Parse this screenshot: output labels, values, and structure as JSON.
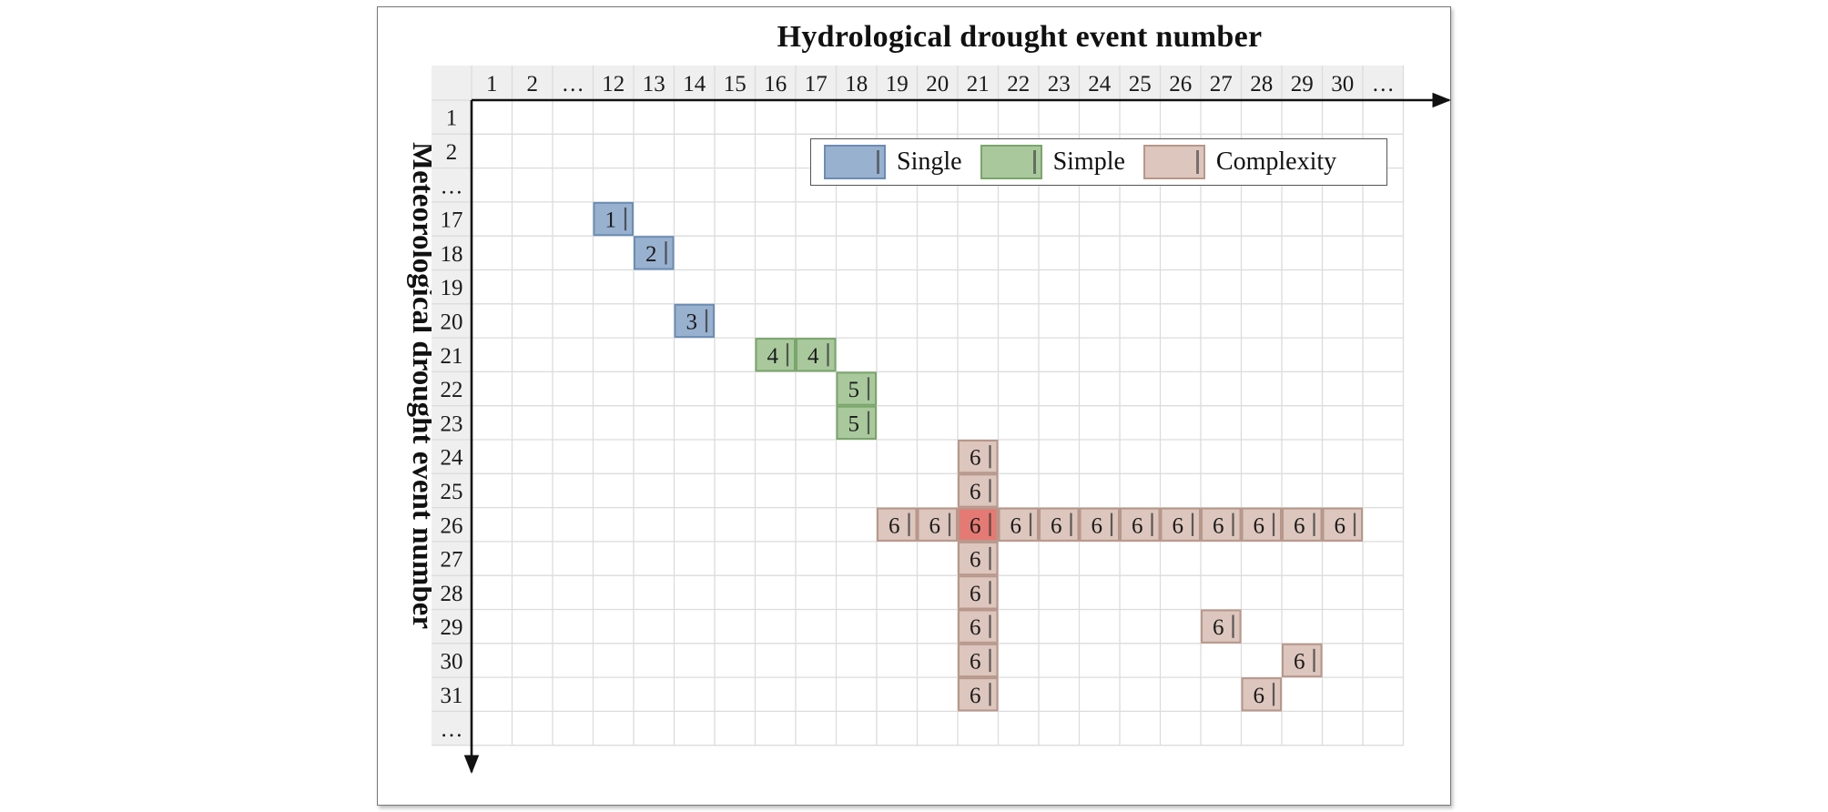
{
  "titles": {
    "x_axis": "Hydrological drought event number",
    "y_axis": "Meteorological drought event number"
  },
  "columns": [
    "1",
    "2",
    "…",
    "12",
    "13",
    "14",
    "15",
    "16",
    "17",
    "18",
    "19",
    "20",
    "21",
    "22",
    "23",
    "24",
    "25",
    "26",
    "27",
    "28",
    "29",
    "30",
    "…"
  ],
  "rows": [
    "1",
    "2",
    "…",
    "17",
    "18",
    "19",
    "20",
    "21",
    "22",
    "23",
    "24",
    "25",
    "26",
    "27",
    "28",
    "29",
    "30",
    "31",
    "…"
  ],
  "legend": [
    {
      "key": "single",
      "label": "Single",
      "fill": "#98b1cf",
      "border": "#6c8db4"
    },
    {
      "key": "simple",
      "label": "Simple",
      "fill": "#a9c99d",
      "border": "#7aa56b"
    },
    {
      "key": "complexity",
      "label": "Complexity",
      "fill": "#dcc6bd",
      "border": "#b8978b"
    }
  ],
  "highlight_color": "#e47a73",
  "cells": [
    {
      "row": "17",
      "col": "12",
      "label": "1",
      "type": "single"
    },
    {
      "row": "18",
      "col": "13",
      "label": "2",
      "type": "single"
    },
    {
      "row": "20",
      "col": "14",
      "label": "3",
      "type": "single"
    },
    {
      "row": "21",
      "col": "16",
      "label": "4",
      "type": "simple"
    },
    {
      "row": "21",
      "col": "17",
      "label": "4",
      "type": "simple"
    },
    {
      "row": "22",
      "col": "18",
      "label": "5",
      "type": "simple"
    },
    {
      "row": "23",
      "col": "18",
      "label": "5",
      "type": "simple"
    },
    {
      "row": "24",
      "col": "21",
      "label": "6",
      "type": "complexity"
    },
    {
      "row": "25",
      "col": "21",
      "label": "6",
      "type": "complexity"
    },
    {
      "row": "26",
      "col": "19",
      "label": "6",
      "type": "complexity"
    },
    {
      "row": "26",
      "col": "20",
      "label": "6",
      "type": "complexity"
    },
    {
      "row": "26",
      "col": "21",
      "label": "6",
      "type": "complexity",
      "highlight": true
    },
    {
      "row": "26",
      "col": "22",
      "label": "6",
      "type": "complexity"
    },
    {
      "row": "26",
      "col": "23",
      "label": "6",
      "type": "complexity"
    },
    {
      "row": "26",
      "col": "24",
      "label": "6",
      "type": "complexity"
    },
    {
      "row": "26",
      "col": "25",
      "label": "6",
      "type": "complexity"
    },
    {
      "row": "26",
      "col": "26",
      "label": "6",
      "type": "complexity"
    },
    {
      "row": "26",
      "col": "27",
      "label": "6",
      "type": "complexity"
    },
    {
      "row": "26",
      "col": "28",
      "label": "6",
      "type": "complexity"
    },
    {
      "row": "26",
      "col": "29",
      "label": "6",
      "type": "complexity"
    },
    {
      "row": "26",
      "col": "30",
      "label": "6",
      "type": "complexity"
    },
    {
      "row": "27",
      "col": "21",
      "label": "6",
      "type": "complexity"
    },
    {
      "row": "28",
      "col": "21",
      "label": "6",
      "type": "complexity"
    },
    {
      "row": "29",
      "col": "21",
      "label": "6",
      "type": "complexity"
    },
    {
      "row": "29",
      "col": "27",
      "label": "6",
      "type": "complexity"
    },
    {
      "row": "30",
      "col": "21",
      "label": "6",
      "type": "complexity"
    },
    {
      "row": "30",
      "col": "29",
      "label": "6",
      "type": "complexity"
    },
    {
      "row": "31",
      "col": "21",
      "label": "6",
      "type": "complexity"
    },
    {
      "row": "31",
      "col": "28",
      "label": "6",
      "type": "complexity"
    }
  ]
}
